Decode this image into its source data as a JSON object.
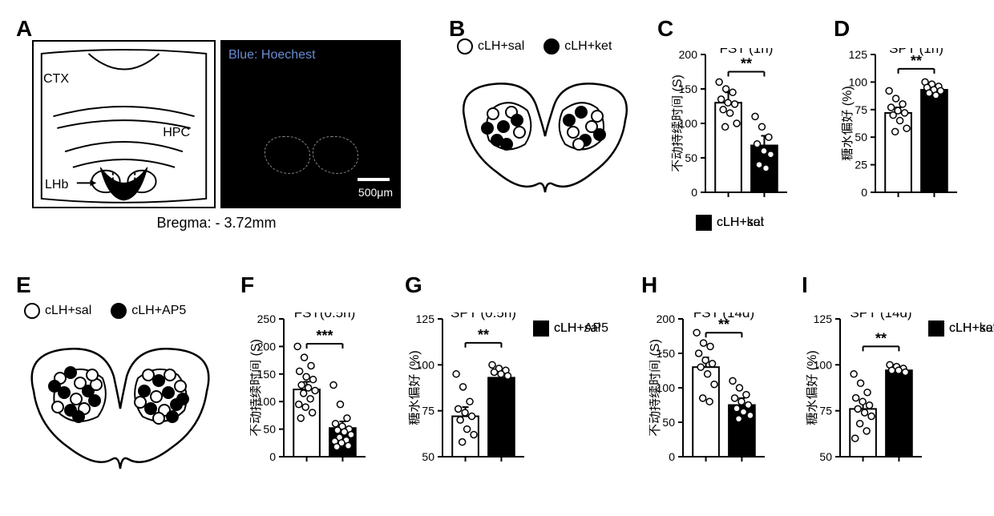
{
  "labels": {
    "A": "A",
    "B": "B",
    "C": "C",
    "D": "D",
    "E": "E",
    "F": "F",
    "G": "G",
    "H": "H",
    "I": "I"
  },
  "panelA": {
    "ctx": "CTX",
    "hpc": "HPC",
    "lhb": "LHb",
    "bregma": "Bregma: - 3.72mm",
    "blue": "Blue: Hoechest",
    "scale": "500μm"
  },
  "panelB": {
    "legend_sal": "cLH+sal",
    "legend_ket": "cLH+ket"
  },
  "panelE": {
    "legend_sal": "cLH+sal",
    "legend_ap5": "cLH+AP5"
  },
  "charts": {
    "C": {
      "title": "FST (1h)",
      "ylabel": "不动持续时间 (S)",
      "ylim": [
        0,
        200
      ],
      "yticks": [
        0,
        50,
        100,
        150,
        200
      ],
      "bars": [
        {
          "label": "cLH+sal",
          "value": 130,
          "sem": 15,
          "fill": "#ffffff",
          "stroke": "#000000",
          "points": [
            160,
            150,
            145,
            135,
            130,
            128,
            120,
            115,
            100,
            95
          ]
        },
        {
          "label": "cLH+ket",
          "value": 68,
          "sem": 14,
          "fill": "#000000",
          "stroke": "#000000",
          "points": [
            110,
            95,
            80,
            70,
            60,
            55,
            40,
            35
          ]
        }
      ],
      "sig": "**",
      "sig_y": 175,
      "legend": [
        {
          "label": "cLH+sal",
          "fill": "#ffffff"
        },
        {
          "label": "cLH+ket",
          "fill": "#000000"
        }
      ]
    },
    "D": {
      "title": "SPT (1h)",
      "ylabel": "糖水偏好 (%)",
      "ylim": [
        0,
        125
      ],
      "yticks": [
        0,
        25,
        50,
        75,
        100,
        125
      ],
      "bars": [
        {
          "label": "cLH+sal",
          "value": 72,
          "sem": 5,
          "fill": "#ffffff",
          "stroke": "#000000",
          "points": [
            92,
            85,
            80,
            77,
            74,
            72,
            70,
            65,
            58,
            55
          ]
        },
        {
          "label": "cLH+ket",
          "value": 93,
          "sem": 3,
          "fill": "#000000",
          "stroke": "#000000",
          "points": [
            100,
            98,
            96,
            95,
            93,
            92,
            90,
            88
          ]
        }
      ],
      "sig": "**",
      "sig_y": 112
    },
    "F": {
      "title": "FST(0.5h)",
      "ylabel": "不动持续时间 (S)",
      "ylim": [
        0,
        250
      ],
      "yticks": [
        0,
        50,
        100,
        150,
        200,
        250
      ],
      "bars": [
        {
          "label": "cLH+sal",
          "value": 122,
          "sem": 14,
          "fill": "#ffffff",
          "stroke": "#000000",
          "points": [
            200,
            180,
            165,
            155,
            145,
            140,
            130,
            125,
            120,
            115,
            105,
            95,
            90,
            80,
            70
          ]
        },
        {
          "label": "cLH+AP5",
          "value": 52,
          "sem": 12,
          "fill": "#000000",
          "stroke": "#000000",
          "points": [
            130,
            95,
            70,
            60,
            55,
            50,
            48,
            45,
            40,
            35,
            30,
            28,
            25,
            20,
            18
          ]
        }
      ],
      "sig": "***",
      "sig_y": 205,
      "legend": [
        {
          "label": "cLH+sal",
          "fill": "#ffffff"
        },
        {
          "label": "cLH+AP5",
          "fill": "#000000"
        }
      ]
    },
    "G": {
      "title": "SPT (0.5h)",
      "ylabel": "糖水偏好 (%)",
      "ylim": [
        50,
        125
      ],
      "yticks": [
        50,
        75,
        100,
        125
      ],
      "bars": [
        {
          "label": "cLH+sal",
          "value": 72,
          "sem": 5,
          "fill": "#ffffff",
          "stroke": "#000000",
          "points": [
            95,
            88,
            80,
            76,
            74,
            72,
            70,
            65,
            62,
            58
          ]
        },
        {
          "label": "cLH+AP5",
          "value": 93,
          "sem": 3,
          "fill": "#000000",
          "stroke": "#000000",
          "points": [
            100,
            98,
            97,
            96,
            95,
            94
          ]
        }
      ],
      "sig": "**",
      "sig_y": 112,
      "legend": [
        {
          "label": "cLH+sal",
          "fill": "#ffffff"
        },
        {
          "label": "cLH+AP5",
          "fill": "#000000"
        }
      ]
    },
    "H": {
      "title": "FST (14d)",
      "ylabel": "不动持续时间 (S)",
      "ylim": [
        0,
        200
      ],
      "yticks": [
        0,
        50,
        100,
        150,
        200
      ],
      "bars": [
        {
          "label": "cLH+sal",
          "value": 130,
          "sem": 14,
          "fill": "#ffffff",
          "stroke": "#000000",
          "points": [
            180,
            165,
            160,
            150,
            140,
            135,
            130,
            120,
            105,
            85,
            80
          ]
        },
        {
          "label": "cLH+ket",
          "value": 75,
          "sem": 10,
          "fill": "#000000",
          "stroke": "#000000",
          "points": [
            110,
            100,
            90,
            85,
            80,
            75,
            70,
            65,
            60,
            55
          ]
        }
      ],
      "sig": "**",
      "sig_y": 180,
      "legend": [
        {
          "label": "cLH+sal",
          "fill": "#ffffff"
        },
        {
          "label": "cLH+ket",
          "fill": "#000000"
        }
      ]
    },
    "I": {
      "title": "SPT (14d)",
      "ylabel": "糖水偏好 (%)",
      "ylim": [
        50,
        125
      ],
      "yticks": [
        50,
        75,
        100,
        125
      ],
      "bars": [
        {
          "label": "cLH+sal",
          "value": 76,
          "sem": 4,
          "fill": "#ffffff",
          "stroke": "#000000",
          "points": [
            95,
            90,
            85,
            82,
            80,
            78,
            76,
            74,
            72,
            68,
            64,
            60
          ]
        },
        {
          "label": "cLH+ket",
          "value": 97,
          "sem": 2,
          "fill": "#000000",
          "stroke": "#000000",
          "points": [
            100,
            99,
            98,
            97,
            97,
            96
          ]
        }
      ],
      "sig": "**",
      "sig_y": 110,
      "legend": [
        {
          "label": "cLH+sal",
          "fill": "#ffffff"
        },
        {
          "label": "cLH+ket",
          "fill": "#000000"
        }
      ]
    }
  },
  "chart_style": {
    "width": 150,
    "height": 190,
    "margin": {
      "l": 42,
      "r": 6,
      "t": 8,
      "b": 10
    },
    "bar_width": 0.32,
    "bar_gap": 0.12,
    "axis_color": "#000000",
    "axis_width": 2,
    "tick_len": 6,
    "tick_fontsize": 14,
    "point_r": 4,
    "point_stroke": "#000000",
    "point_fill": "#ffffff",
    "sem_cap": 8
  }
}
